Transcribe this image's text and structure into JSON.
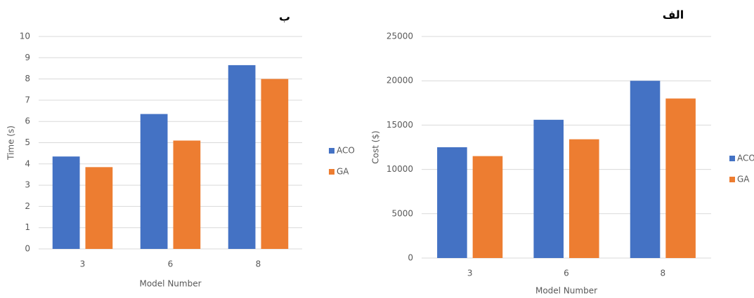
{
  "chart_data": [
    {
      "type": "bar",
      "title": "ب",
      "x_label": "Model Number",
      "y_label": "Time (s)",
      "categories": [
        "3",
        "6",
        "8"
      ],
      "series": [
        {
          "name": "ACO",
          "color": "#4472c4",
          "values": [
            4.35,
            6.35,
            8.65
          ]
        },
        {
          "name": "GA",
          "color": "#ed7d31",
          "values": [
            3.85,
            5.1,
            8.0
          ]
        }
      ],
      "ylim": [
        0,
        10
      ],
      "yticks": [
        0,
        1,
        2,
        3,
        4,
        5,
        6,
        7,
        8,
        9,
        10
      ],
      "grid": true,
      "legend": "right"
    },
    {
      "type": "bar",
      "title": "الف",
      "x_label": "Model Number",
      "y_label": "Cost ($)",
      "categories": [
        "3",
        "6",
        "8"
      ],
      "series": [
        {
          "name": "ACO",
          "color": "#4472c4",
          "values": [
            12500,
            15600,
            20000
          ]
        },
        {
          "name": "GA",
          "color": "#ed7d31",
          "values": [
            11500,
            13400,
            18000
          ]
        }
      ],
      "ylim": [
        0,
        25000
      ],
      "yticks": [
        0,
        5000,
        10000,
        15000,
        20000,
        25000
      ],
      "grid": true,
      "legend": "right"
    }
  ]
}
